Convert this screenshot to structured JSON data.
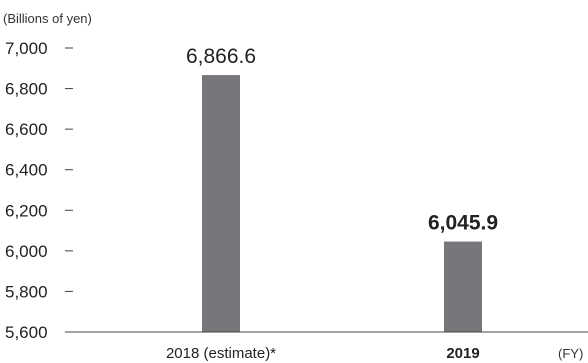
{
  "chart_data": {
    "type": "bar",
    "unit_label": "(Billions of yen)",
    "x_unit_label": "(FY)",
    "categories": [
      "2018 (estimate)*",
      "2019"
    ],
    "values": [
      6866.6,
      6045.9
    ],
    "data_labels": [
      "6,866.6",
      "6,045.9"
    ],
    "emphasized_category": "2019",
    "ylim": [
      5600,
      7000
    ],
    "y_ticks": [
      5600,
      5800,
      6000,
      6200,
      6400,
      6600,
      6800,
      7000
    ],
    "y_tick_labels": [
      "5,600",
      "5,800",
      "6,000",
      "6,200",
      "6,400",
      "6,600",
      "6,800",
      "7,000"
    ],
    "grid": false,
    "bar_color": "#76777a",
    "axis_color": "#444444"
  }
}
